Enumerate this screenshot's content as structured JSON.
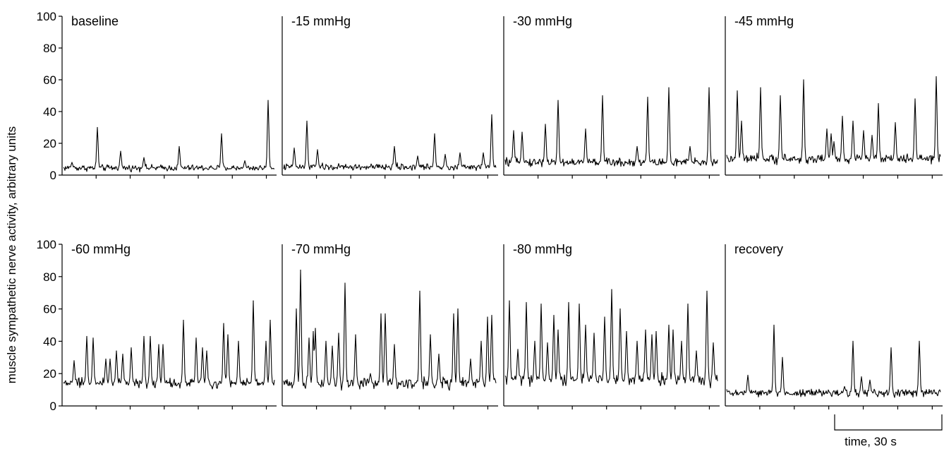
{
  "chart_data": {
    "type": "line",
    "ylabel": "muscle sympathetic nerve activity, arbitrary units",
    "ylim": [
      0,
      100
    ],
    "yticks": [
      "0",
      "20",
      "40",
      "60",
      "80",
      "100"
    ],
    "grid": false,
    "legend": "none",
    "time_scale_bar": {
      "label": "time, 30 s",
      "duration_s": 30
    },
    "panels": [
      {
        "name": "baseline",
        "row": 0,
        "col": 0,
        "baseline": 4.5,
        "noise": 1.2,
        "bursts": [
          [
            0.04,
            8
          ],
          [
            0.16,
            30
          ],
          [
            0.27,
            15
          ],
          [
            0.38,
            11
          ],
          [
            0.55,
            18
          ],
          [
            0.75,
            26
          ],
          [
            0.86,
            9
          ],
          [
            0.97,
            47
          ]
        ]
      },
      {
        "name": "-15 mmHg",
        "row": 0,
        "col": 1,
        "baseline": 5,
        "noise": 1.3,
        "bursts": [
          [
            0.05,
            17
          ],
          [
            0.11,
            34
          ],
          [
            0.16,
            16
          ],
          [
            0.52,
            18
          ],
          [
            0.63,
            12
          ],
          [
            0.71,
            26
          ],
          [
            0.76,
            13
          ],
          [
            0.83,
            14
          ],
          [
            0.94,
            14
          ],
          [
            0.98,
            38
          ]
        ]
      },
      {
        "name": "-30 mmHg",
        "row": 0,
        "col": 2,
        "baseline": 8,
        "noise": 1.6,
        "bursts": [
          [
            0.04,
            28
          ],
          [
            0.08,
            27
          ],
          [
            0.19,
            32
          ],
          [
            0.25,
            47
          ],
          [
            0.38,
            29
          ],
          [
            0.46,
            50
          ],
          [
            0.62,
            18
          ],
          [
            0.67,
            49
          ],
          [
            0.77,
            55
          ],
          [
            0.87,
            18
          ],
          [
            0.96,
            55
          ]
        ]
      },
      {
        "name": "-45 mmHg",
        "row": 0,
        "col": 3,
        "baseline": 10,
        "noise": 1.8,
        "bursts": [
          [
            0.05,
            53
          ],
          [
            0.07,
            34
          ],
          [
            0.16,
            55
          ],
          [
            0.25,
            50
          ],
          [
            0.36,
            60
          ],
          [
            0.47,
            29
          ],
          [
            0.49,
            26
          ],
          [
            0.5,
            21
          ],
          [
            0.54,
            37
          ],
          [
            0.59,
            34
          ],
          [
            0.64,
            28
          ],
          [
            0.68,
            25
          ],
          [
            0.71,
            45
          ],
          [
            0.79,
            33
          ],
          [
            0.88,
            48
          ],
          [
            0.98,
            62
          ]
        ]
      },
      {
        "name": "-60 mmHg",
        "row": 1,
        "col": 0,
        "baseline": 14,
        "noise": 2.0,
        "bursts": [
          [
            0.05,
            28
          ],
          [
            0.11,
            43
          ],
          [
            0.14,
            42
          ],
          [
            0.2,
            29
          ],
          [
            0.22,
            29
          ],
          [
            0.25,
            34
          ],
          [
            0.28,
            32
          ],
          [
            0.32,
            36
          ],
          [
            0.38,
            43
          ],
          [
            0.41,
            43
          ],
          [
            0.45,
            38
          ],
          [
            0.47,
            38
          ],
          [
            0.57,
            53
          ],
          [
            0.63,
            42
          ],
          [
            0.66,
            36
          ],
          [
            0.68,
            34
          ],
          [
            0.76,
            51
          ],
          [
            0.78,
            44
          ],
          [
            0.83,
            40
          ],
          [
            0.9,
            65
          ],
          [
            0.96,
            40
          ],
          [
            0.98,
            53
          ]
        ]
      },
      {
        "name": "-70 mmHg",
        "row": 1,
        "col": 1,
        "baseline": 14,
        "noise": 2.2,
        "bursts": [
          [
            0.06,
            60
          ],
          [
            0.08,
            84
          ],
          [
            0.12,
            42
          ],
          [
            0.14,
            46
          ],
          [
            0.15,
            48
          ],
          [
            0.2,
            40
          ],
          [
            0.23,
            37
          ],
          [
            0.26,
            45
          ],
          [
            0.29,
            76
          ],
          [
            0.34,
            44
          ],
          [
            0.41,
            20
          ],
          [
            0.46,
            57
          ],
          [
            0.48,
            57
          ],
          [
            0.52,
            38
          ],
          [
            0.64,
            71
          ],
          [
            0.69,
            44
          ],
          [
            0.73,
            32
          ],
          [
            0.8,
            57
          ],
          [
            0.82,
            60
          ],
          [
            0.88,
            29
          ],
          [
            0.93,
            40
          ],
          [
            0.96,
            55
          ],
          [
            0.98,
            56
          ]
        ]
      },
      {
        "name": "-80 mmHg",
        "row": 1,
        "col": 2,
        "baseline": 16,
        "noise": 2.4,
        "bursts": [
          [
            0.02,
            65
          ],
          [
            0.06,
            35
          ],
          [
            0.1,
            64
          ],
          [
            0.14,
            40
          ],
          [
            0.17,
            63
          ],
          [
            0.2,
            39
          ],
          [
            0.23,
            56
          ],
          [
            0.25,
            47
          ],
          [
            0.3,
            64
          ],
          [
            0.35,
            63
          ],
          [
            0.38,
            50
          ],
          [
            0.42,
            45
          ],
          [
            0.47,
            55
          ],
          [
            0.5,
            72
          ],
          [
            0.54,
            60
          ],
          [
            0.57,
            46
          ],
          [
            0.62,
            40
          ],
          [
            0.66,
            47
          ],
          [
            0.69,
            44
          ],
          [
            0.71,
            46
          ],
          [
            0.77,
            50
          ],
          [
            0.79,
            47
          ],
          [
            0.83,
            40
          ],
          [
            0.86,
            63
          ],
          [
            0.9,
            34
          ],
          [
            0.95,
            71
          ],
          [
            0.98,
            39
          ]
        ]
      },
      {
        "name": "recovery",
        "row": 1,
        "col": 3,
        "baseline": 8,
        "noise": 1.5,
        "bursts": [
          [
            0.1,
            19
          ],
          [
            0.22,
            50
          ],
          [
            0.26,
            30
          ],
          [
            0.55,
            12
          ],
          [
            0.59,
            40
          ],
          [
            0.63,
            18
          ],
          [
            0.67,
            16
          ],
          [
            0.77,
            36
          ],
          [
            0.9,
            40
          ]
        ]
      }
    ]
  }
}
